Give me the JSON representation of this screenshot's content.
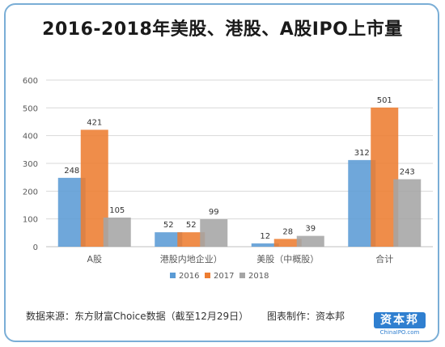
{
  "chart_data": {
    "type": "bar",
    "title": "2016-2018年美股、港股、A股IPO上市量",
    "categories": [
      "A股",
      "港股内地企业）",
      "美股（中概股）",
      "合计"
    ],
    "series": [
      {
        "name": "2016",
        "values": [
          248,
          52,
          12,
          312
        ],
        "color": "#5b9bd5"
      },
      {
        "name": "2017",
        "values": [
          421,
          52,
          28,
          501
        ],
        "color": "#ed7d31"
      },
      {
        "name": "2018",
        "values": [
          105,
          99,
          39,
          243
        ],
        "color": "#a5a5a5"
      }
    ],
    "ylim": [
      0,
      600
    ],
    "yticks": [
      0,
      100,
      200,
      300,
      400,
      500,
      600
    ],
    "grid": true,
    "legend_position": "bottom",
    "data_labels": true
  },
  "footer": {
    "source": "数据来源：东方财富Choice数据（截至12月29日）",
    "maker": "图表制作：资本邦"
  },
  "logo": {
    "main": "资本邦",
    "sub": "ChinaIPO.com"
  }
}
